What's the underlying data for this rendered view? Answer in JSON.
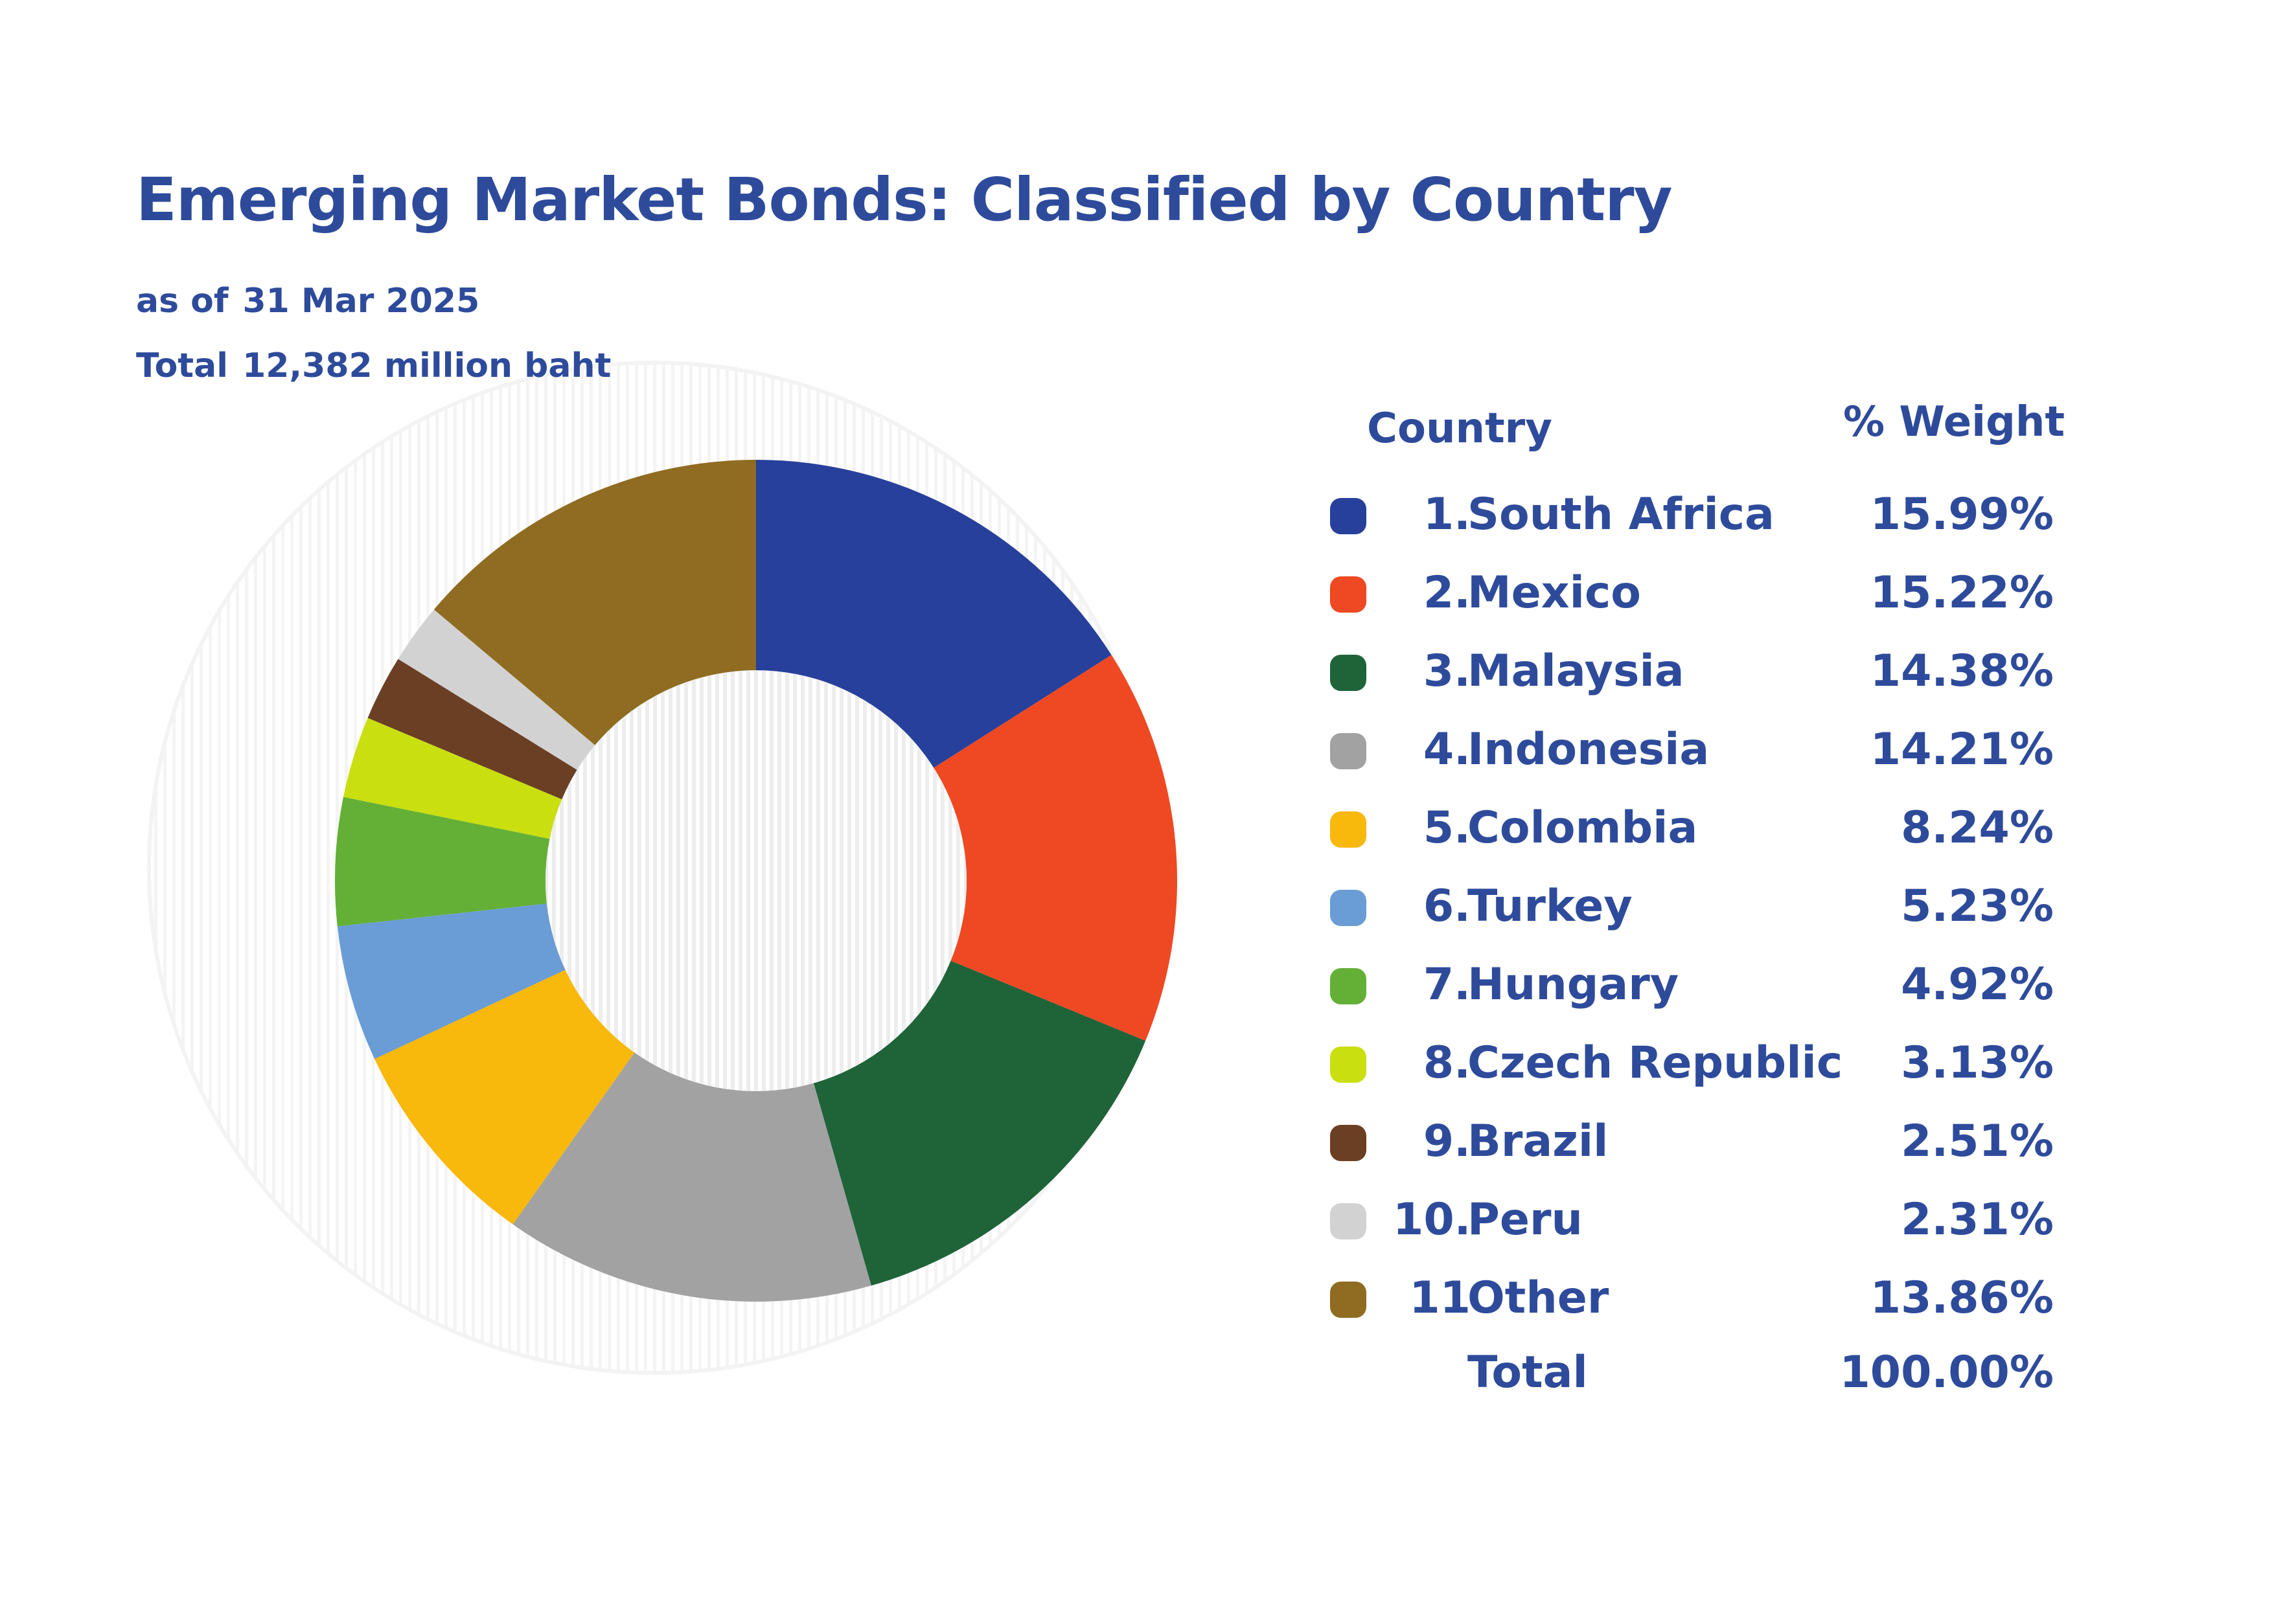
{
  "header": {
    "title": "Emerging Market Bonds: Classified by Country",
    "asof_label": "as of",
    "asof_value": "31 Mar 2025",
    "total_label": "Total",
    "total_value": "12,382 million baht"
  },
  "legend": {
    "col_country": "Country",
    "col_weight": "% Weight",
    "total_label": "Total",
    "total_value": "100.00%"
  },
  "chart_data": {
    "type": "pie",
    "style": "donut",
    "start_angle_deg": 0,
    "direction": "clockwise",
    "items": [
      {
        "number": "1.",
        "label": "South Africa",
        "value": 15.99,
        "display": "15.99%",
        "color": "#27409b"
      },
      {
        "number": "2.",
        "label": "Mexico",
        "value": 15.22,
        "display": "15.22%",
        "color": "#ee4923"
      },
      {
        "number": "3.",
        "label": "Malaysia",
        "value": 14.38,
        "display": "14.38%",
        "color": "#1f6339"
      },
      {
        "number": "4.",
        "label": "Indonesia",
        "value": 14.21,
        "display": "14.21%",
        "color": "#a2a2a2"
      },
      {
        "number": "5.",
        "label": "Colombia",
        "value": 8.24,
        "display": "8.24%",
        "color": "#f8b80c"
      },
      {
        "number": "6.",
        "label": "Turkey",
        "value": 5.23,
        "display": "5.23%",
        "color": "#6a9cd6"
      },
      {
        "number": "7.",
        "label": "Hungary",
        "value": 4.92,
        "display": "4.92%",
        "color": "#64b036"
      },
      {
        "number": "8.",
        "label": "Czech Republic",
        "value": 3.13,
        "display": "3.13%",
        "color": "#c9df10"
      },
      {
        "number": "9.",
        "label": "Brazil",
        "value": 2.51,
        "display": "2.51%",
        "color": "#6b3f24"
      },
      {
        "number": "10.",
        "label": "Peru",
        "value": 2.31,
        "display": "2.31%",
        "color": "#d2d2d2"
      },
      {
        "number": "11",
        "label": "Other",
        "value": 13.86,
        "display": "13.86%",
        "color": "#8f6c21"
      }
    ]
  }
}
